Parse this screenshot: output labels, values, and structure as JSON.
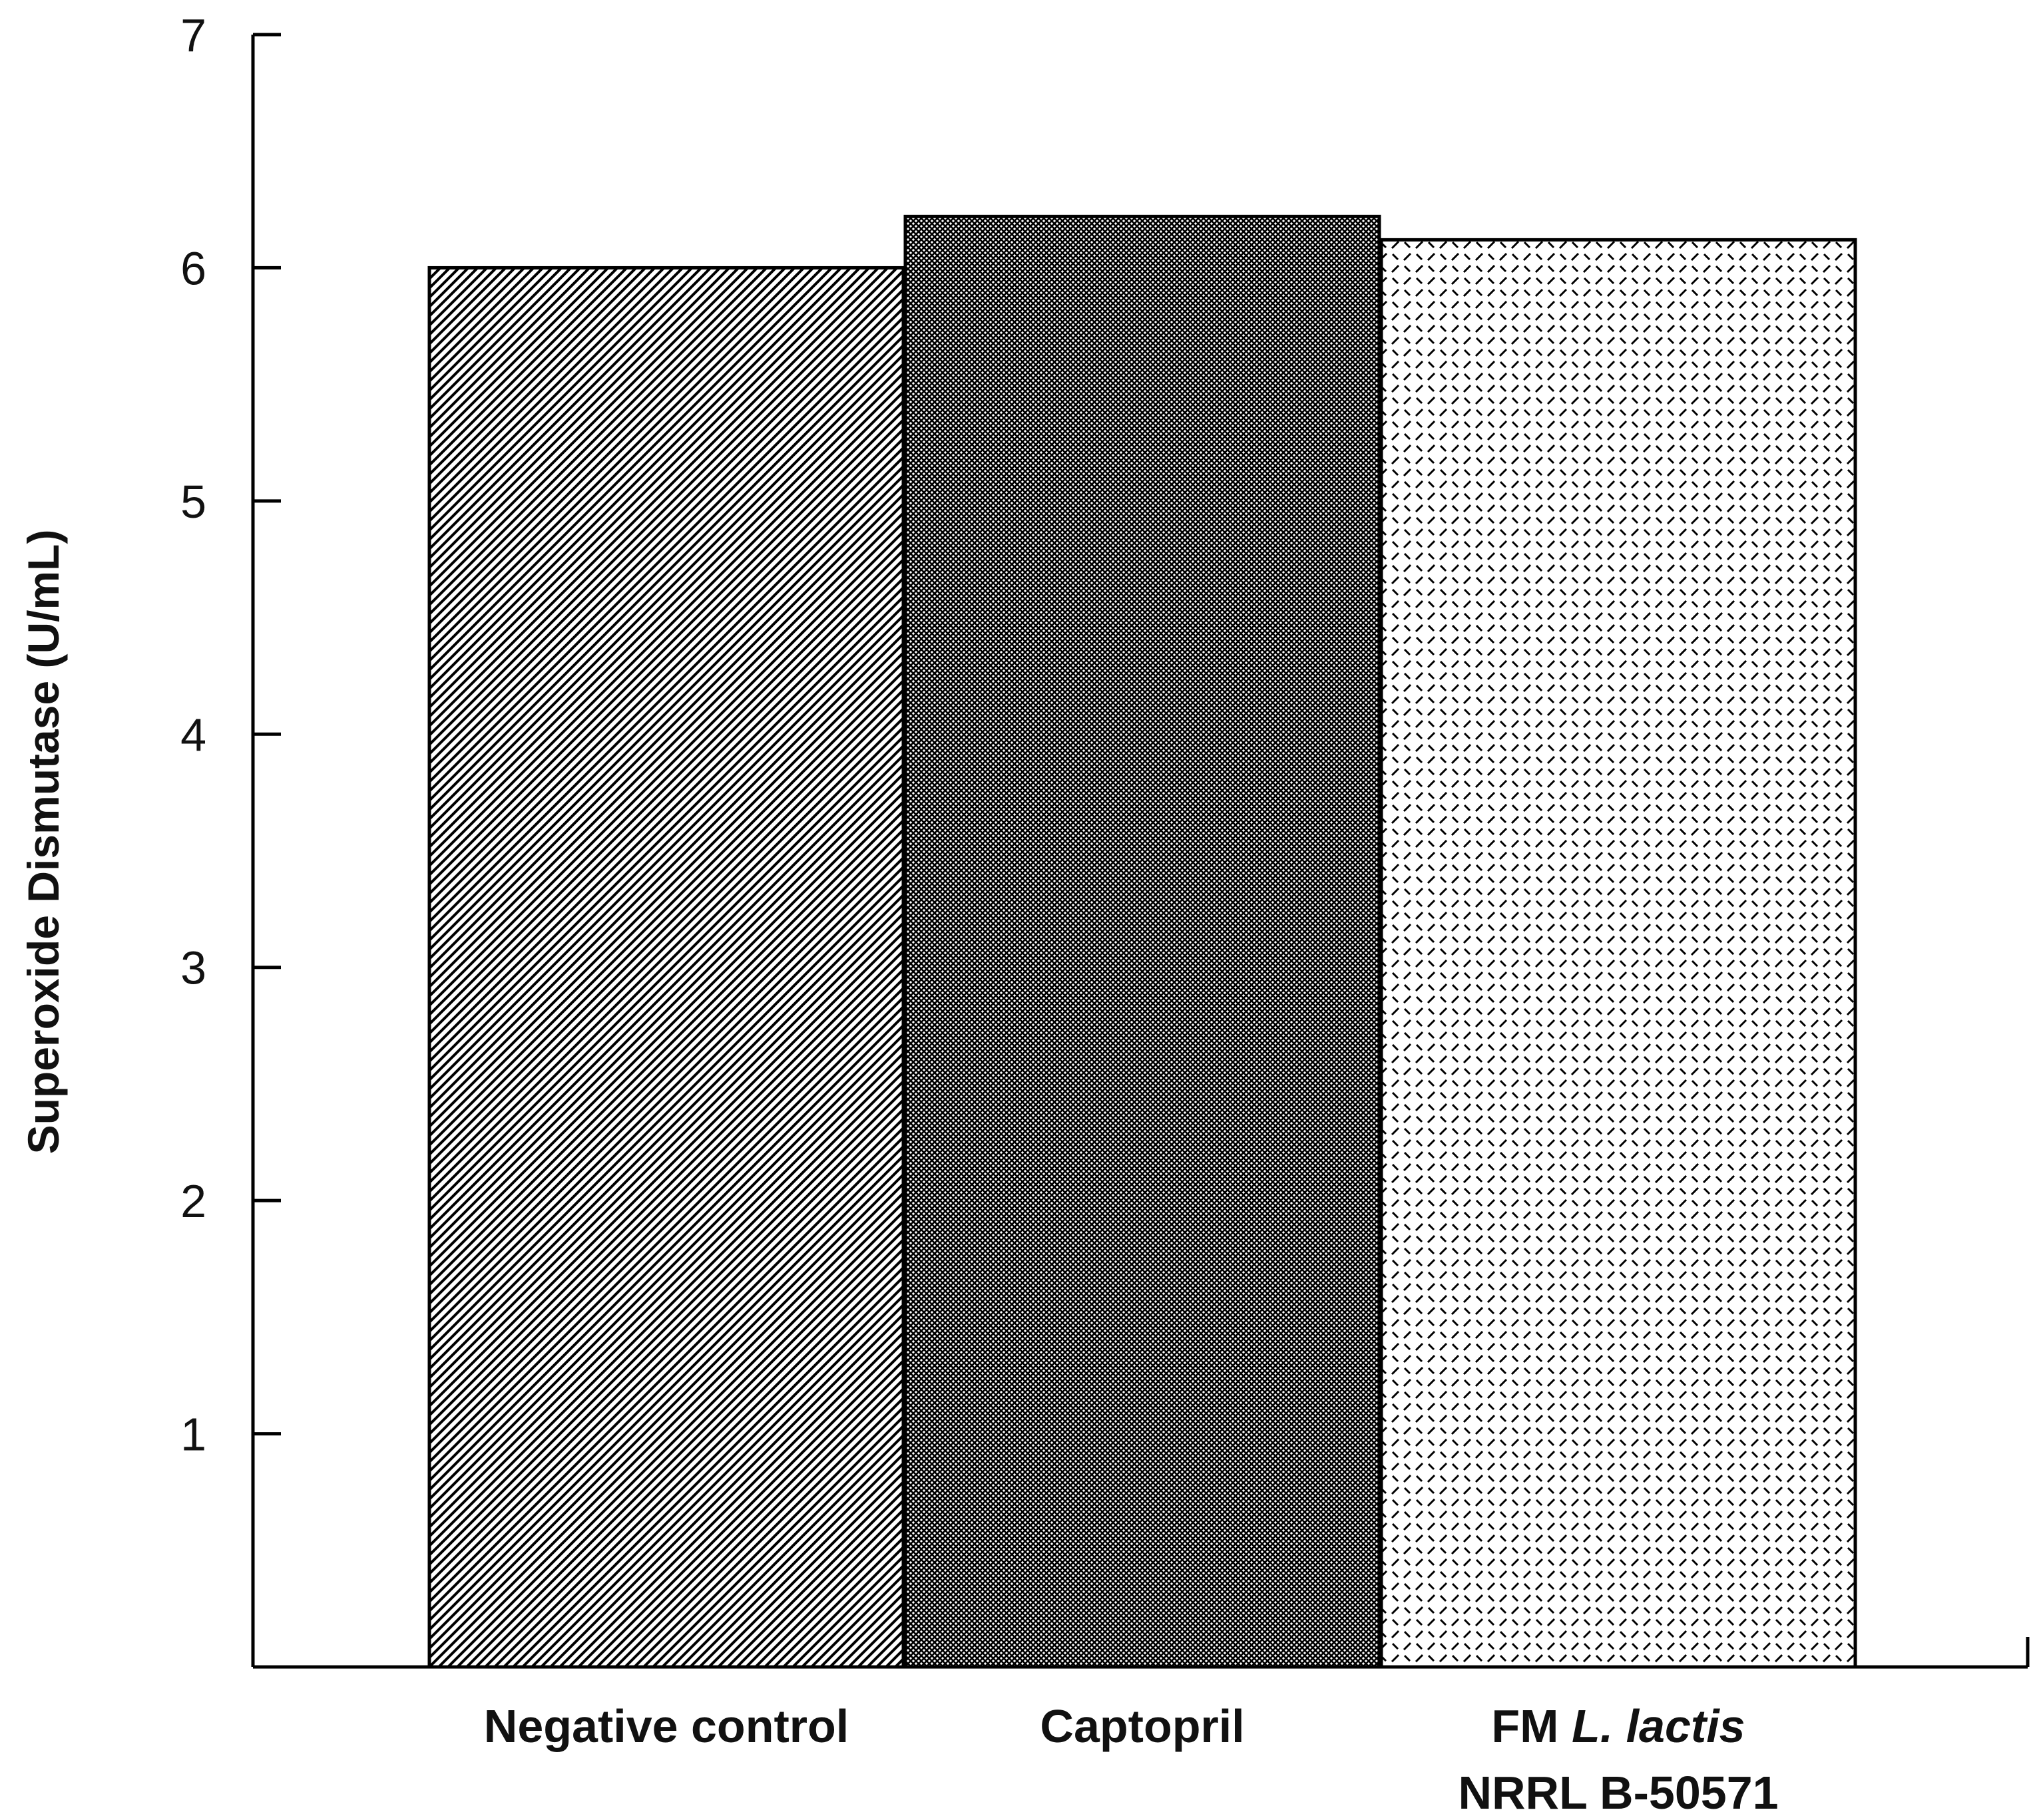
{
  "chart_data": {
    "type": "bar",
    "title": "",
    "xlabel": "",
    "ylabel": "Superoxide Dismutase (U/mL)",
    "ylim": [
      0,
      7
    ],
    "yticks": [
      1,
      2,
      3,
      4,
      5,
      6,
      7
    ],
    "grid": false,
    "legend": "none",
    "categories": [
      {
        "lines": [
          [
            {
              "text": "Negative control",
              "italic": false
            }
          ]
        ]
      },
      {
        "lines": [
          [
            {
              "text": "Captopril",
              "italic": false
            }
          ]
        ]
      },
      {
        "lines": [
          [
            {
              "text": "FM ",
              "italic": false
            },
            {
              "text": "L. lactis",
              "italic": true
            }
          ],
          [
            {
              "text": "NRRL B-50571",
              "italic": false
            }
          ]
        ]
      }
    ],
    "values": [
      6.0,
      6.22,
      6.12
    ],
    "patterns": [
      "diagonal-hatch",
      "dense-crosshatch",
      "dashed-dots"
    ],
    "colors": {
      "ink": "#000000",
      "background": "#ffffff"
    }
  }
}
